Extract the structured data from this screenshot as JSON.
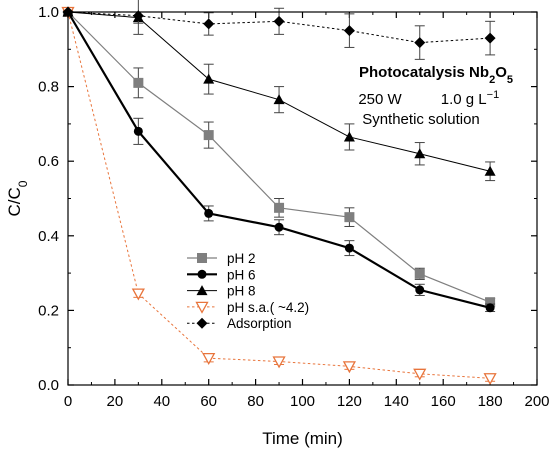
{
  "chart_data": {
    "type": "line",
    "xlabel": "Time (min)",
    "ylabel_main": "C/C",
    "ylabel_sub": "0",
    "xlim": [
      0,
      200
    ],
    "ylim": [
      0,
      1.0
    ],
    "xticks": [
      0,
      20,
      40,
      60,
      80,
      100,
      120,
      140,
      160,
      180,
      200
    ],
    "yticks": [
      0.0,
      0.2,
      0.4,
      0.6,
      0.8,
      1.0
    ],
    "legend_position": "bottom-center",
    "annotations": {
      "line1_main": "Photocatalysis Nb",
      "line1_sub1": "2",
      "line1_mid": "O",
      "line1_sub2": "5",
      "line2_left": "250 W",
      "line2_right_main": "1.0 g L",
      "line2_right_sup": "−1",
      "line3": "Synthetic solution"
    },
    "series": [
      {
        "name": "pH 2",
        "x": [
          0,
          30,
          60,
          90,
          120,
          150,
          180
        ],
        "y": [
          1.0,
          0.81,
          0.67,
          0.475,
          0.45,
          0.298,
          0.222
        ],
        "err": [
          0,
          0.04,
          0.035,
          0.025,
          0.025,
          0.015,
          0.01
        ],
        "color": "#7f7f7f",
        "marker": "square",
        "line_width": 1.2,
        "dash": "solid"
      },
      {
        "name": "pH 6",
        "x": [
          0,
          30,
          60,
          90,
          120,
          150,
          180
        ],
        "y": [
          1.0,
          0.68,
          0.46,
          0.423,
          0.367,
          0.255,
          0.207
        ],
        "err": [
          0,
          0.035,
          0.02,
          0.02,
          0.02,
          0.015,
          0.01
        ],
        "color": "#000000",
        "marker": "circle",
        "line_width": 2.2,
        "dash": "solid"
      },
      {
        "name": "pH 8",
        "x": [
          0,
          30,
          60,
          90,
          120,
          150,
          180
        ],
        "y": [
          1.0,
          0.985,
          0.82,
          0.765,
          0.665,
          0.62,
          0.573
        ],
        "err": [
          0,
          0.015,
          0.04,
          0.035,
          0.035,
          0.03,
          0.025
        ],
        "color": "#000000",
        "marker": "triangle",
        "line_width": 1.0,
        "dash": "solid"
      },
      {
        "name": "pH s.a.( ~4.2)",
        "x": [
          0,
          30,
          60,
          90,
          120,
          150,
          180
        ],
        "y": [
          1.0,
          0.245,
          0.072,
          0.063,
          0.05,
          0.03,
          0.018
        ],
        "err": [
          0,
          0.01,
          0.01,
          0.008,
          0.008,
          0.008,
          0.008
        ],
        "color": "#e8743b",
        "marker": "triangle-down-open",
        "line_width": 1.0,
        "dash": "dotted"
      },
      {
        "name": "Adsorption",
        "x": [
          0,
          30,
          60,
          90,
          120,
          150,
          180
        ],
        "y": [
          1.0,
          0.99,
          0.968,
          0.975,
          0.95,
          0.918,
          0.93
        ],
        "err": [
          0,
          0.05,
          0.03,
          0.035,
          0.045,
          0.045,
          0.045
        ],
        "color": "#000000",
        "marker": "diamond",
        "line_width": 1.0,
        "dash": "dotted"
      }
    ]
  }
}
